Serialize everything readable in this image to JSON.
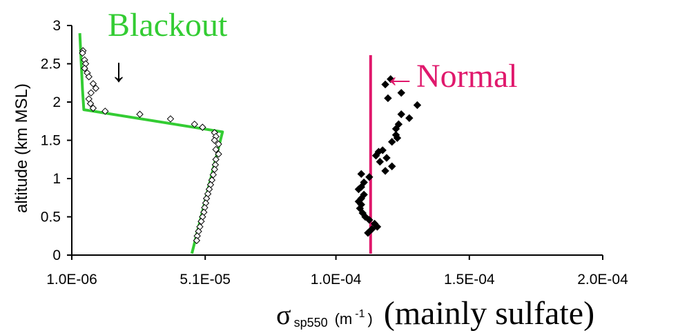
{
  "chart_data": {
    "type": "scatter",
    "title": "",
    "xlabel": {
      "symbol": "σ",
      "subscript": "sp550",
      "units_prefix": "(m",
      "units_sup": "-1",
      "units_suffix": ")",
      "extra": "(mainly sulfate)"
    },
    "ylabel": "altitude (km MSL)",
    "xlim": [
      1e-06,
      0.0002
    ],
    "ylim": [
      0,
      3
    ],
    "x_ticks": [
      1e-06,
      5.1e-05,
      0.0001,
      0.00015,
      0.0002
    ],
    "x_tick_labels": [
      "1.0E-06",
      "5.1E-05",
      "1.0E-04",
      "1.5E-04",
      "2.0E-04"
    ],
    "y_ticks": [
      0,
      0.5,
      1,
      1.5,
      2,
      2.5,
      3
    ],
    "y_tick_labels": [
      "0",
      "0.5",
      "1",
      "1.5",
      "2",
      "2.5",
      "3"
    ],
    "grid": false,
    "colors": {
      "blackout": "#33cc33",
      "normal": "#e0186c",
      "arrow": "#000000"
    },
    "annotations": [
      {
        "text": "Blackout",
        "color": "#33cc33"
      },
      {
        "text": "↓",
        "color": "#000000"
      },
      {
        "text": "←Normal",
        "color": "#e0186c"
      }
    ],
    "series": [
      {
        "name": "Blackout",
        "marker": "open-diamond",
        "points": [
          [
            5.2e-06,
            2.67
          ],
          [
            5e-06,
            2.64
          ],
          [
            5.8e-06,
            2.55
          ],
          [
            6.2e-06,
            2.5
          ],
          [
            5.8e-06,
            2.44
          ],
          [
            6.8e-06,
            2.38
          ],
          [
            7.4e-06,
            2.33
          ],
          [
            9e-06,
            2.24
          ],
          [
            1e-05,
            2.18
          ],
          [
            8.2e-06,
            2.12
          ],
          [
            7.4e-06,
            2.04
          ],
          [
            8e-06,
            1.98
          ],
          [
            9e-06,
            1.92
          ],
          [
            1.35e-05,
            1.88
          ],
          [
            2.65e-05,
            1.84
          ],
          [
            3.8e-05,
            1.78
          ],
          [
            4.7e-05,
            1.71
          ],
          [
            5e-05,
            1.67
          ],
          [
            5.45e-05,
            1.6
          ],
          [
            5.5e-05,
            1.55
          ],
          [
            5.45e-05,
            1.5
          ],
          [
            5.6e-05,
            1.45
          ],
          [
            5.5e-05,
            1.38
          ],
          [
            5.6e-05,
            1.32
          ],
          [
            5.5e-05,
            1.25
          ],
          [
            5.48e-05,
            1.18
          ],
          [
            5.45e-05,
            1.12
          ],
          [
            5.4e-05,
            1.05
          ],
          [
            5.35e-05,
            0.98
          ],
          [
            5.3e-05,
            0.92
          ],
          [
            5.25e-05,
            0.86
          ],
          [
            5.2e-05,
            0.8
          ],
          [
            5.15e-05,
            0.74
          ],
          [
            5.12e-05,
            0.68
          ],
          [
            5.08e-05,
            0.62
          ],
          [
            5.05e-05,
            0.56
          ],
          [
            5e-05,
            0.5
          ],
          [
            4.95e-05,
            0.44
          ],
          [
            4.9e-05,
            0.37
          ],
          [
            4.85e-05,
            0.31
          ],
          [
            4.8e-05,
            0.25
          ],
          [
            4.78e-05,
            0.19
          ]
        ],
        "fit_line": [
          [
            4.6e-05,
            0.02
          ],
          [
            5.75e-05,
            1.61
          ],
          [
            5.5e-06,
            1.9
          ],
          [
            5e-06,
            2.16
          ],
          [
            4e-06,
            2.9
          ]
        ]
      },
      {
        "name": "Normal",
        "marker": "filled-diamond",
        "points": [
          [
            0.0001205,
            2.3
          ],
          [
            0.0001185,
            2.23
          ],
          [
            0.0001245,
            2.12
          ],
          [
            0.0001195,
            2.05
          ],
          [
            0.0001305,
            1.96
          ],
          [
            0.0001245,
            1.84
          ],
          [
            0.0001275,
            1.79
          ],
          [
            0.0001235,
            1.71
          ],
          [
            0.0001225,
            1.65
          ],
          [
            0.0001225,
            1.57
          ],
          [
            0.000123,
            1.53
          ],
          [
            0.000121,
            1.48
          ],
          [
            0.0001175,
            1.37
          ],
          [
            0.000116,
            1.35
          ],
          [
            0.000115,
            1.3
          ],
          [
            0.000119,
            1.27
          ],
          [
            0.0001165,
            1.22
          ],
          [
            0.000121,
            1.16
          ],
          [
            0.0001185,
            1.1
          ],
          [
            0.0001095,
            1.06
          ],
          [
            0.0001125,
            1.02
          ],
          [
            0.0001105,
            0.95
          ],
          [
            0.0001095,
            0.89
          ],
          [
            0.0001085,
            0.86
          ],
          [
            0.0001105,
            0.79
          ],
          [
            0.0001095,
            0.74
          ],
          [
            0.0001085,
            0.7
          ],
          [
            0.0001095,
            0.66
          ],
          [
            0.000109,
            0.61
          ],
          [
            0.00011,
            0.55
          ],
          [
            0.000111,
            0.5
          ],
          [
            0.0001125,
            0.46
          ],
          [
            0.0001145,
            0.41
          ],
          [
            0.0001155,
            0.37
          ],
          [
            0.0001135,
            0.34
          ],
          [
            0.000112,
            0.29
          ]
        ],
        "reference_x": 0.000113
      }
    ]
  }
}
